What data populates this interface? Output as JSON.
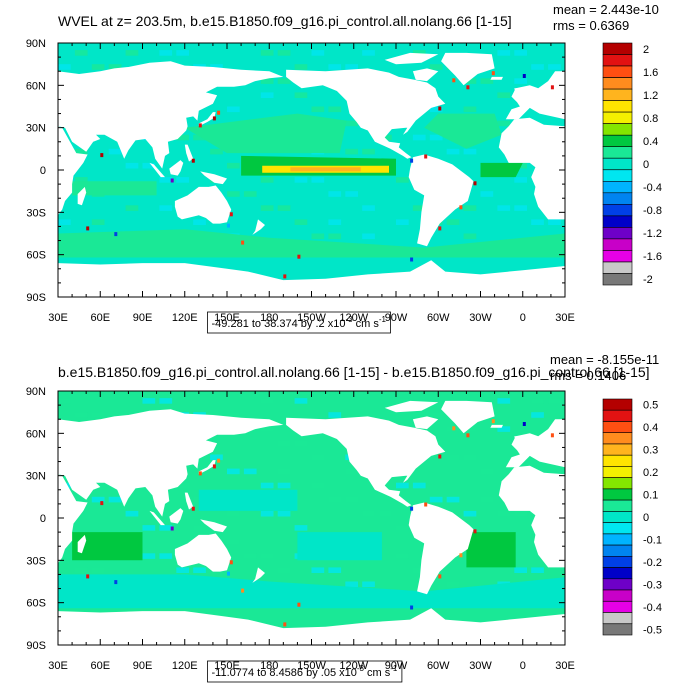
{
  "chart_data": [
    {
      "type": "heatmap",
      "title": "WVEL at z= 203.5m, b.e15.B1850.f09_g16.pi_control.all.nolang.66 [1-15]",
      "stats": {
        "mean": "mean = 2.443e-10",
        "rms": "rms = 0.6369"
      },
      "x_ticks": [
        "30E",
        "60E",
        "90E",
        "120E",
        "150E",
        "180",
        "150W",
        "120W",
        "90W",
        "60W",
        "30W",
        "0",
        "30E"
      ],
      "y_ticks": [
        "90N",
        "60N",
        "30N",
        "0",
        "30S",
        "60S",
        "90S"
      ],
      "xlim": [
        30,
        390
      ],
      "ylim": [
        -90,
        90
      ],
      "range_label": "-49.281 to 38.374 by .2 x10",
      "range_exp": "-3",
      "range_units": " cm s",
      "range_units_exp": "-1",
      "colorbar": {
        "levels": [
          "2",
          "1.6",
          "1.2",
          "0.8",
          "0.4",
          "0",
          "-0.4",
          "-0.8",
          "-1.2",
          "-1.6",
          "-2"
        ],
        "colors": [
          "#B40000",
          "#E21212",
          "#FF4F12",
          "#FF8C1E",
          "#FFB41E",
          "#FFE400",
          "#F4F000",
          "#84E600",
          "#00C840",
          "#1AE896",
          "#00E6C8",
          "#00E6F0",
          "#00B4FF",
          "#0084F0",
          "#0040E6",
          "#0000C8",
          "#6E00C8",
          "#C800C8",
          "#E600E6",
          "#C8C8C8",
          "#787878"
        ]
      },
      "background_color": "#00E6C8"
    },
    {
      "type": "heatmap",
      "title": "b.e15.B1850.f09_g16.pi_control.all.nolang.66 [1-15] - b.e15.B1850.f09_g16.pi_control.66 [1-15]",
      "stats": {
        "mean": "mean = -8.155e-11",
        "rms": "rms = 0.1406"
      },
      "x_ticks": [
        "30E",
        "60E",
        "90E",
        "120E",
        "150E",
        "180",
        "150W",
        "120W",
        "90W",
        "60W",
        "30W",
        "0",
        "30E"
      ],
      "y_ticks": [
        "90N",
        "60N",
        "30N",
        "0",
        "30S",
        "60S",
        "90S"
      ],
      "xlim": [
        30,
        390
      ],
      "ylim": [
        -90,
        90
      ],
      "range_label": "-11.0774 to 8.4586 by .05 x10",
      "range_exp": "-3",
      "range_units": " cm s",
      "range_units_exp": "-1",
      "colorbar": {
        "levels": [
          "0.5",
          "0.4",
          "0.3",
          "0.2",
          "0.1",
          "0",
          "-0.1",
          "-0.2",
          "-0.3",
          "-0.4",
          "-0.5"
        ],
        "colors": [
          "#B40000",
          "#E21212",
          "#FF4F12",
          "#FF8C1E",
          "#FFB41E",
          "#FFE400",
          "#F4F000",
          "#84E600",
          "#00C840",
          "#1AE896",
          "#00E6C8",
          "#00E6F0",
          "#00B4FF",
          "#0084F0",
          "#0040E6",
          "#0000C8",
          "#6E00C8",
          "#C800C8",
          "#E600E6",
          "#C8C8C8",
          "#787878"
        ]
      },
      "background_color": "#1AE896"
    }
  ]
}
